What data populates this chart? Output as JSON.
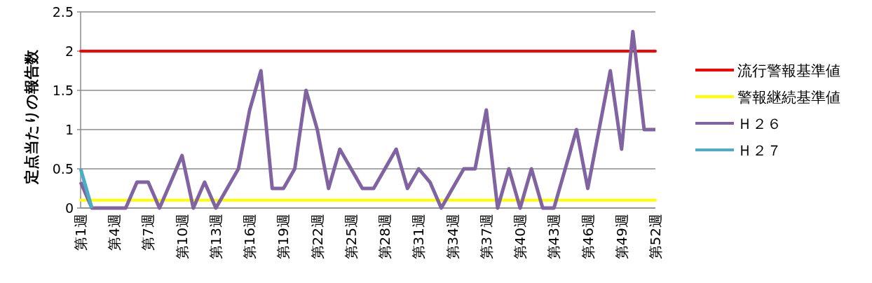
{
  "chart_data": {
    "type": "line",
    "ylabel": "定点当たりの報告数",
    "categories": [
      "第1週",
      null,
      null,
      "第4週",
      null,
      null,
      "第7週",
      null,
      null,
      "第10週",
      null,
      null,
      "第13週",
      null,
      null,
      "第16週",
      null,
      null,
      "第19週",
      null,
      null,
      "第22週",
      null,
      null,
      "第25週",
      null,
      null,
      "第28週",
      null,
      null,
      "第31週",
      null,
      null,
      "第34週",
      null,
      null,
      "第37週",
      null,
      null,
      "第40週",
      null,
      null,
      "第43週",
      null,
      null,
      "第46週",
      null,
      null,
      "第49週",
      null,
      null,
      "第52週"
    ],
    "series": [
      {
        "name": "Ｈ２６",
        "color": "#8064a2",
        "values": [
          0.33,
          0,
          0,
          0,
          0,
          0.33,
          0.33,
          0,
          0.33,
          0.67,
          0,
          0.33,
          0,
          0.25,
          0.5,
          1.25,
          1.75,
          0.25,
          0.25,
          0.5,
          1.5,
          1.0,
          0.25,
          0.75,
          0.5,
          0.25,
          0.25,
          0.5,
          0.75,
          0.25,
          0.5,
          0.33,
          0,
          0.25,
          0.5,
          0.5,
          1.25,
          0,
          0.5,
          0,
          0.5,
          0,
          0,
          0.5,
          1.0,
          0.25,
          1.0,
          1.75,
          0.75,
          2.25,
          1.0,
          1.0
        ]
      },
      {
        "name": "Ｈ２７",
        "color": "#4bacc6",
        "values": [
          0.5,
          0,
          null,
          null,
          null,
          null,
          null,
          null,
          null,
          null,
          null,
          null,
          null,
          null,
          null,
          null,
          null,
          null,
          null,
          null,
          null,
          null,
          null,
          null,
          null,
          null,
          null,
          null,
          null,
          null,
          null,
          null,
          null,
          null,
          null,
          null,
          null,
          null,
          null,
          null,
          null,
          null,
          null,
          null,
          null,
          null,
          null,
          null,
          null,
          null,
          null,
          null
        ]
      }
    ],
    "ref_lines": [
      {
        "axis": "y",
        "value": 2,
        "label": "流行警報基準値",
        "color": "#ff0000"
      },
      {
        "axis": "y",
        "value": 0.1,
        "label": "警報継続基準値",
        "color": "#ffff00"
      }
    ],
    "ylim": [
      0,
      2.5
    ],
    "yticks": [
      0,
      0.5,
      1,
      1.5,
      2,
      2.5
    ],
    "grid": "y",
    "legend": "right",
    "marker": "none",
    "line_style": "solid"
  }
}
